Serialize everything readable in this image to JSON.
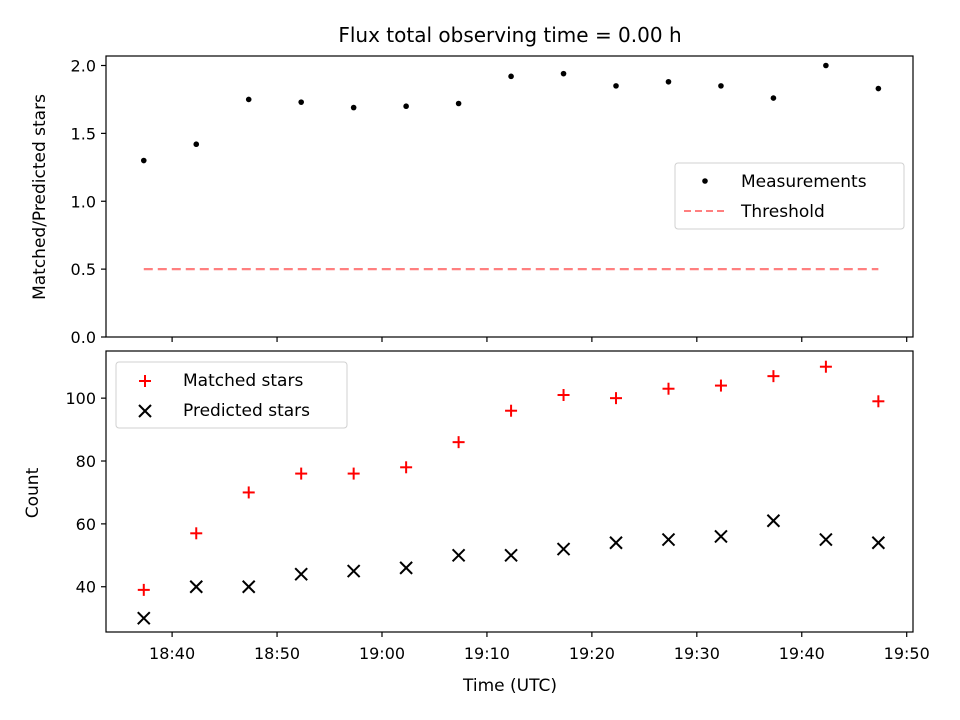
{
  "chart_data": [
    {
      "type": "scatter",
      "panel": "top",
      "title": "Flux total observing time = 0.00 h",
      "ylabel": "Matched/Predicted stars",
      "xlabel": "",
      "ylim": [
        0.0,
        2.07
      ],
      "yticks": [
        "0.0",
        "0.5",
        "1.0",
        "1.5",
        "2.0"
      ],
      "ytick_values": [
        0.0,
        0.5,
        1.0,
        1.5,
        2.0
      ],
      "x_minutes": [
        37.3,
        42.3,
        47.3,
        52.3,
        57.3,
        62.3,
        67.3,
        72.3,
        77.3,
        82.3,
        87.3,
        92.3,
        97.3,
        102.3,
        107.3
      ],
      "series": [
        {
          "name": "Measurements",
          "marker": "dot",
          "color": "#000000",
          "values": [
            1.3,
            1.42,
            1.75,
            1.73,
            1.69,
            1.7,
            1.72,
            1.92,
            1.94,
            1.85,
            1.88,
            1.85,
            1.76,
            2.0,
            1.83
          ]
        },
        {
          "name": "Threshold",
          "marker": "dashed-line",
          "color": "#ff7f7f",
          "values": [
            0.5,
            0.5
          ]
        }
      ],
      "legend": [
        "Measurements",
        "Threshold"
      ],
      "legend_position": "center-right"
    },
    {
      "type": "scatter",
      "panel": "bottom",
      "title": "",
      "ylabel": "Count",
      "xlabel": "Time (UTC)",
      "ylim": [
        25.6,
        115.0
      ],
      "yticks": [
        "40",
        "60",
        "80",
        "100"
      ],
      "ytick_values": [
        40,
        60,
        80,
        100
      ],
      "x_minutes": [
        37.3,
        42.3,
        47.3,
        52.3,
        57.3,
        62.3,
        67.3,
        72.3,
        77.3,
        82.3,
        87.3,
        92.3,
        97.3,
        102.3,
        107.3
      ],
      "xticks": [
        "18:40",
        "18:50",
        "19:00",
        "19:10",
        "19:20",
        "19:30",
        "19:40",
        "19:50"
      ],
      "xtick_minutes": [
        40,
        50,
        60,
        70,
        80,
        90,
        100,
        110
      ],
      "xlim_minutes": [
        33.7,
        110.6
      ],
      "series": [
        {
          "name": "Matched stars",
          "marker": "plus",
          "color": "#ff0000",
          "values": [
            39,
            57,
            70,
            76,
            76,
            78,
            86,
            96,
            101,
            100,
            103,
            104,
            107,
            110,
            99
          ]
        },
        {
          "name": "Predicted stars",
          "marker": "x",
          "color": "#000000",
          "values": [
            30,
            40,
            40,
            44,
            45,
            46,
            50,
            50,
            52,
            54,
            55,
            56,
            61,
            55,
            54
          ]
        }
      ],
      "legend": [
        "Matched stars",
        "Predicted stars"
      ],
      "legend_position": "top-left"
    }
  ]
}
